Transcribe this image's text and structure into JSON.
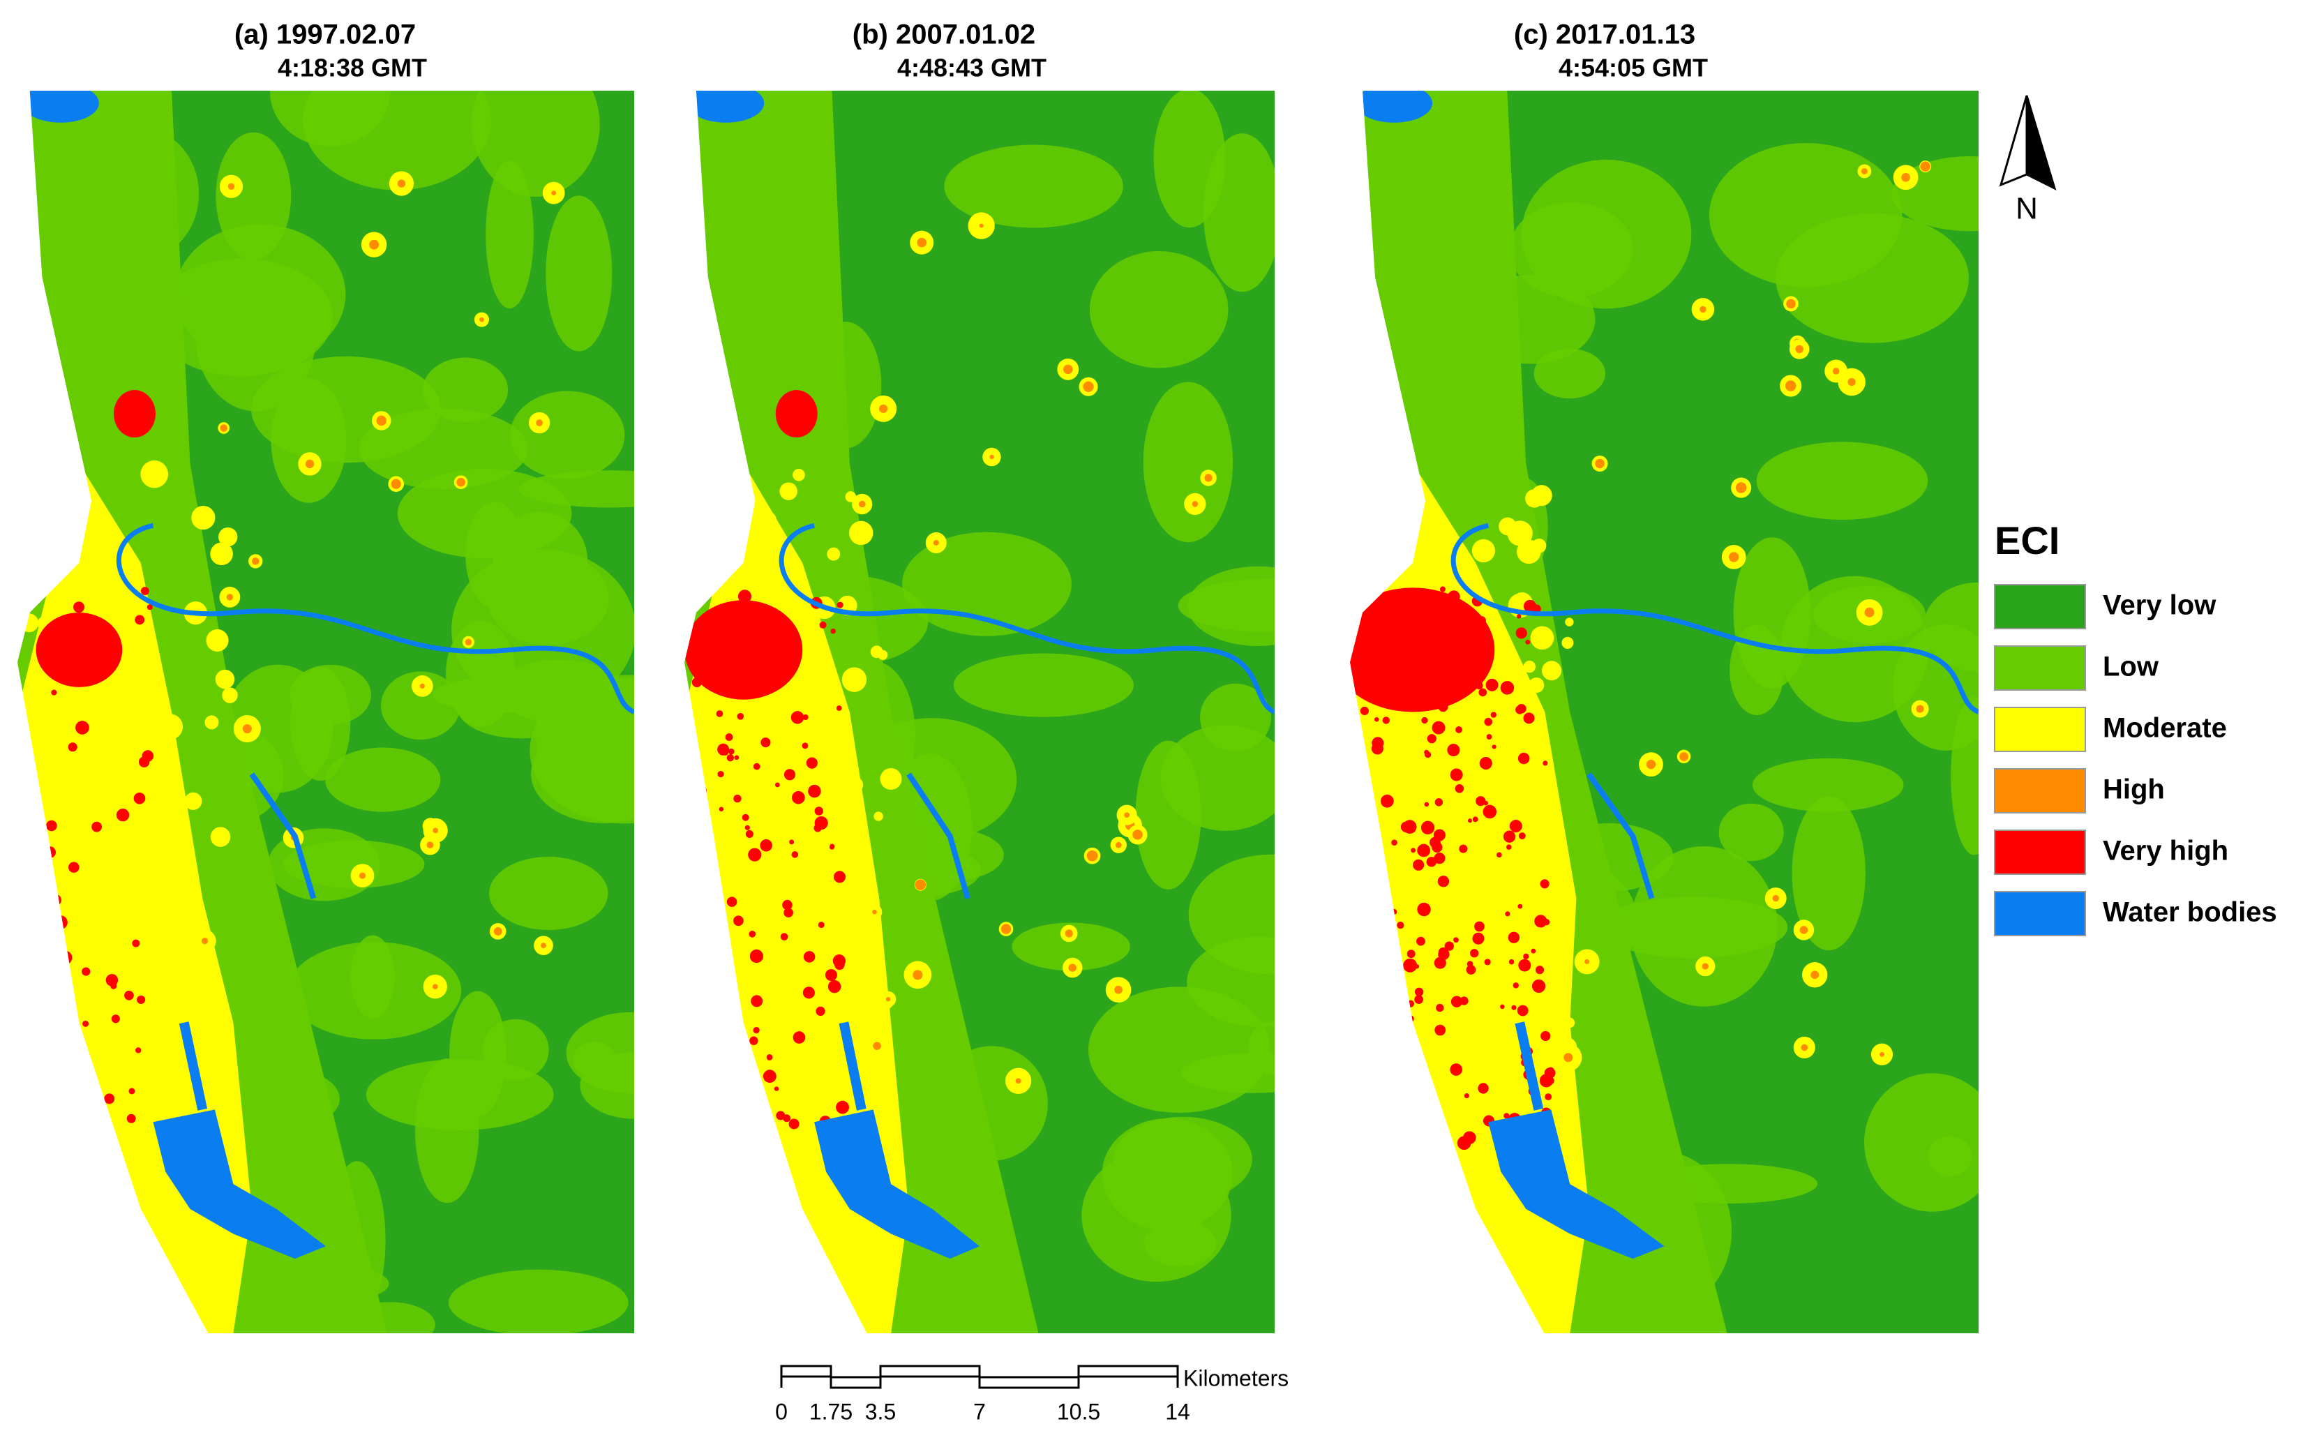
{
  "panels": [
    {
      "title": "(a) 1997.02.07",
      "time": "4:18:38 GMT"
    },
    {
      "title": "(b) 2007.01.02",
      "time": "4:48:43 GMT"
    },
    {
      "title": "(c) 2017.01.13",
      "time": "4:54:05 GMT"
    }
  ],
  "north_arrow": {
    "label": "N"
  },
  "legend": {
    "title": "ECI",
    "items": [
      {
        "label": "Very low",
        "color": "#2aa51c"
      },
      {
        "label": "Low",
        "color": "#66cc00"
      },
      {
        "label": "Moderate",
        "color": "#ffff00"
      },
      {
        "label": "High",
        "color": "#ff8c00"
      },
      {
        "label": "Very high",
        "color": "#ff0000"
      },
      {
        "label": "Water bodies",
        "color": "#0a7ef0"
      }
    ]
  },
  "scale_bar": {
    "ticks": [
      0,
      1.75,
      3.5,
      7,
      10.5,
      14
    ],
    "unit": "Kilometers"
  }
}
